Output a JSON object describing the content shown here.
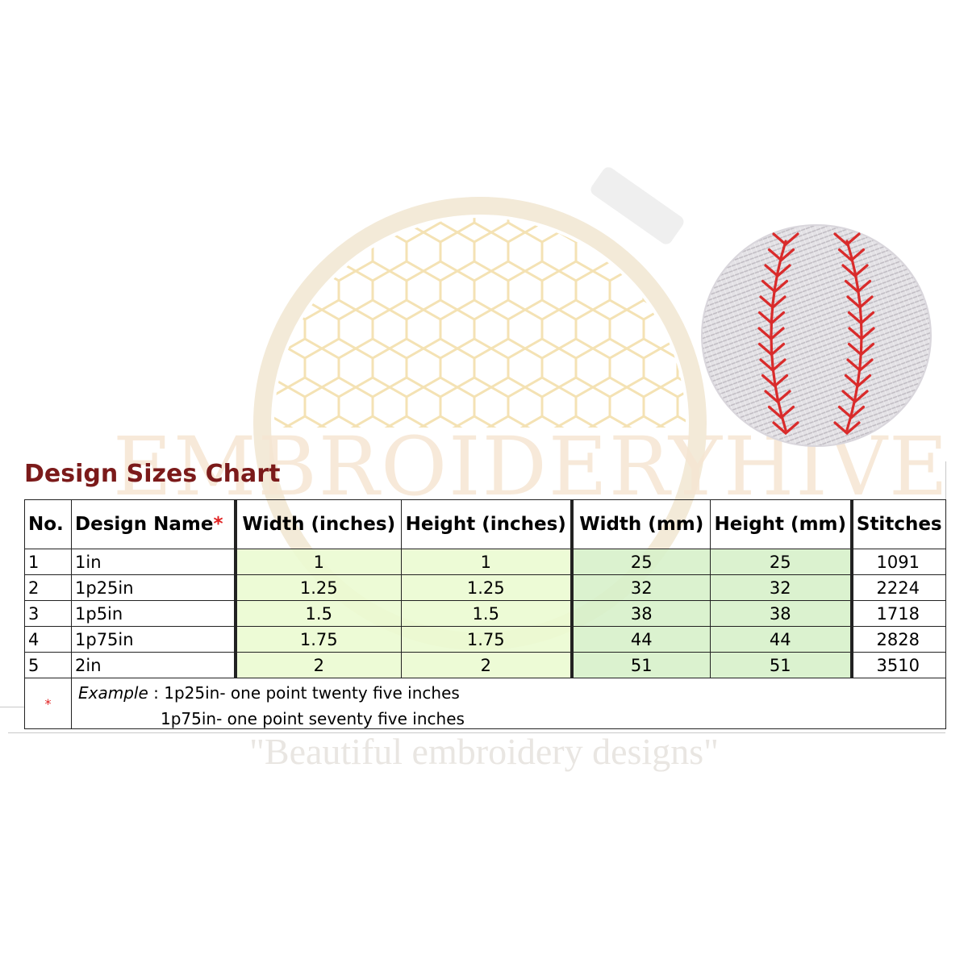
{
  "watermark": {
    "brand": "EMBROIDERYHIVE",
    "tagline": "\"Beautiful embroidery designs\""
  },
  "title": "Design Sizes Chart",
  "table": {
    "headers": {
      "no": "No.",
      "name": "Design Name",
      "name_star": "*",
      "width_in": "Width (inches)",
      "height_in": "Height (inches)",
      "width_mm": "Width (mm)",
      "height_mm": "Height (mm)",
      "stitches": "Stitches"
    },
    "rows": [
      {
        "no": "1",
        "name": "1in",
        "width_in": "1",
        "height_in": "1",
        "width_mm": "25",
        "height_mm": "25",
        "stitches": "1091"
      },
      {
        "no": "2",
        "name": "1p25in",
        "width_in": "1.25",
        "height_in": "1.25",
        "width_mm": "32",
        "height_mm": "32",
        "stitches": "2224"
      },
      {
        "no": "3",
        "name": "1p5in",
        "width_in": "1.5",
        "height_in": "1.5",
        "width_mm": "38",
        "height_mm": "38",
        "stitches": "1718"
      },
      {
        "no": "4",
        "name": "1p75in",
        "width_in": "1.75",
        "height_in": "1.75",
        "width_mm": "44",
        "height_mm": "44",
        "stitches": "2828"
      },
      {
        "no": "5",
        "name": "2in",
        "width_in": "2",
        "height_in": "2",
        "width_mm": "51",
        "height_mm": "51",
        "stitches": "3510"
      }
    ],
    "note": {
      "star": "*",
      "label": "Example",
      "line1": " : 1p25in- one point  twenty five inches",
      "line2": "1p75in- one point  seventy five inches"
    }
  },
  "colors": {
    "title": "#7b1a1a",
    "asterisk": "#e02020",
    "inch_columns_bg": "#eafad0",
    "mm_columns_bg": "#d6f0c8",
    "baseball_stitch": "#d92b2b"
  },
  "icons": {
    "baseball": "baseball-embroidery-icon",
    "hoop": "embroidery-hoop-watermark-icon"
  }
}
